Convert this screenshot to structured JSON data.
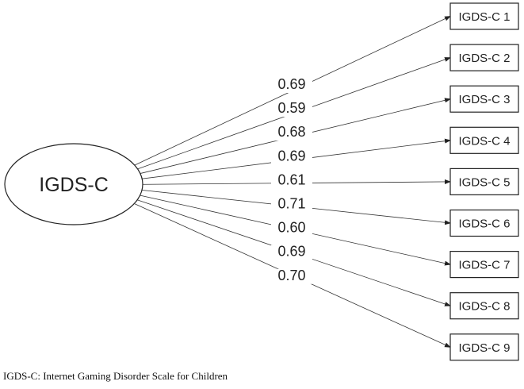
{
  "diagram": {
    "latent": {
      "label": "IGDS-C"
    },
    "items": [
      {
        "label": "IGDS-C 1",
        "loading": "0.69"
      },
      {
        "label": "IGDS-C 2",
        "loading": "0.59"
      },
      {
        "label": "IGDS-C 3",
        "loading": "0.68"
      },
      {
        "label": "IGDS-C 4",
        "loading": "0.69"
      },
      {
        "label": "IGDS-C 5",
        "loading": "0.61"
      },
      {
        "label": "IGDS-C 6",
        "loading": "0.71"
      },
      {
        "label": "IGDS-C 7",
        "loading": "0.60"
      },
      {
        "label": "IGDS-C 8",
        "loading": "0.69"
      },
      {
        "label": "IGDS-C 9",
        "loading": "0.70"
      }
    ]
  },
  "caption": "IGDS-C: Internet Gaming Disorder Scale for Children"
}
